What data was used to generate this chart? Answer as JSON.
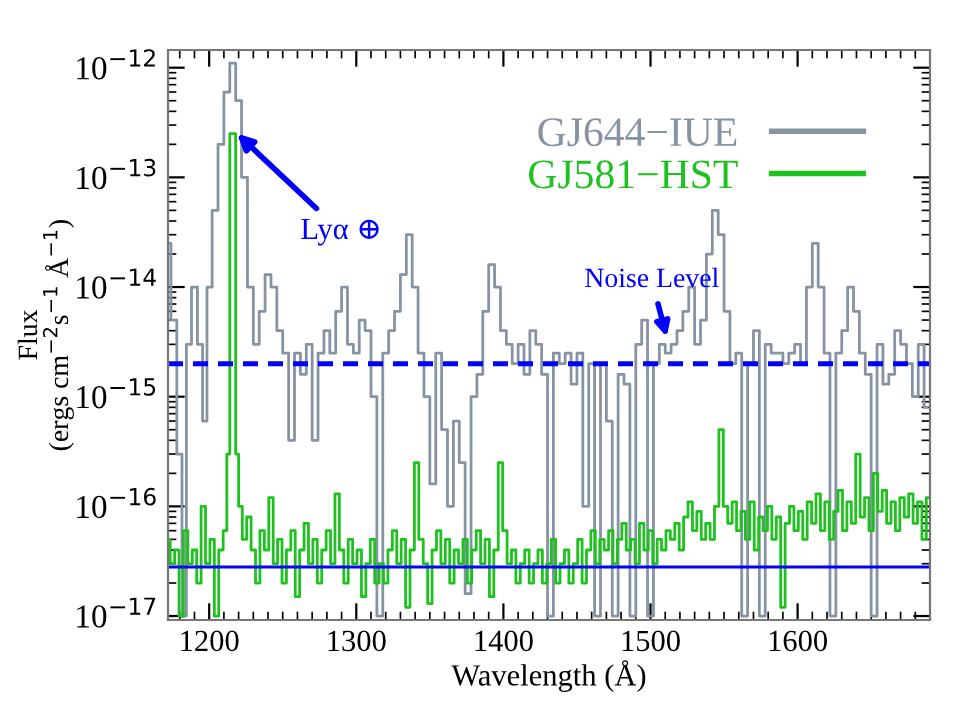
{
  "chart_data": {
    "type": "step",
    "xlabel": "Wavelength (Å)",
    "ylabel": "Flux\n(ergs cm$^{−2}$s$^{−1}$ Å$^{−1}$)",
    "log": "y",
    "xlim": [
      1172,
      1690
    ],
    "ylim": [
      9.2e-18,
      1.45e-12
    ],
    "xticks": [
      1200,
      1300,
      1400,
      1500,
      1600
    ],
    "yticks": [
      {
        "value": 1e-17,
        "label": "10$^{−17}$"
      },
      {
        "value": 1e-16,
        "label": "10$^{−16}$"
      },
      {
        "value": 1e-15,
        "label": "10$^{−15}$"
      },
      {
        "value": 1e-14,
        "label": "10$^{−14}$"
      },
      {
        "value": 1e-13,
        "label": "10$^{−13}$"
      },
      {
        "value": 1e-12,
        "label": "10$^{−12}$"
      }
    ],
    "legend": "top right",
    "grid": false,
    "series": [
      {
        "name": "GJ644−IUE",
        "color": "#8593a3",
        "x": [
          1172,
          1176,
          1180,
          1183,
          1186,
          1190,
          1194,
          1197,
          1200,
          1204,
          1208,
          1212,
          1216,
          1220,
          1224,
          1228,
          1232,
          1236,
          1240,
          1244,
          1248,
          1252,
          1256,
          1260,
          1264,
          1268,
          1272,
          1276,
          1280,
          1284,
          1288,
          1292,
          1296,
          1300,
          1304,
          1308,
          1312,
          1316,
          1320,
          1324,
          1328,
          1332,
          1336,
          1340,
          1344,
          1348,
          1352,
          1356,
          1360,
          1364,
          1368,
          1372,
          1376,
          1380,
          1384,
          1388,
          1392,
          1396,
          1400,
          1404,
          1408,
          1412,
          1416,
          1420,
          1424,
          1428,
          1432,
          1436,
          1440,
          1444,
          1448,
          1452,
          1456,
          1460,
          1464,
          1468,
          1472,
          1476,
          1480,
          1484,
          1488,
          1492,
          1496,
          1500,
          1504,
          1508,
          1512,
          1516,
          1520,
          1524,
          1528,
          1532,
          1536,
          1540,
          1544,
          1548,
          1552,
          1556,
          1560,
          1564,
          1568,
          1572,
          1576,
          1580,
          1584,
          1588,
          1592,
          1596,
          1600,
          1604,
          1608,
          1612,
          1616,
          1620,
          1624,
          1628,
          1632,
          1636,
          1640,
          1644,
          1648,
          1652,
          1656,
          1660,
          1664,
          1668,
          1672,
          1676,
          1680,
          1684,
          1688
        ],
        "values": [
          2.5e-14,
          5e-15,
          3e-16,
          1e-17,
          3e-15,
          1e-14,
          3e-15,
          6e-16,
          1e-14,
          5e-14,
          2e-13,
          6e-13,
          1.1e-12,
          5e-13,
          1e-13,
          1e-14,
          3e-15,
          6e-15,
          1.3e-14,
          1e-14,
          4e-15,
          2.5e-15,
          4e-16,
          2.5e-15,
          1.6e-15,
          3e-15,
          4e-16,
          2.5e-15,
          4e-15,
          2.5e-15,
          6e-15,
          1e-14,
          3e-15,
          2.5e-15,
          5e-15,
          4e-15,
          1e-15,
          1e-17,
          2.5e-15,
          4e-15,
          6e-15,
          1.3e-14,
          3e-14,
          1e-14,
          2.5e-15,
          1e-15,
          1.6e-16,
          2.5e-15,
          5e-16,
          1e-16,
          6e-16,
          2.5e-16,
          1.6e-17,
          1e-15,
          1.6e-15,
          6e-15,
          1.6e-14,
          1e-14,
          4e-15,
          3e-15,
          2e-15,
          3e-15,
          1.6e-15,
          4e-15,
          3e-15,
          1.6e-15,
          1e-17,
          2.5e-15,
          2e-15,
          2.5e-15,
          1.3e-15,
          2.5e-15,
          1e-16,
          2e-15,
          1e-17,
          2e-15,
          6e-16,
          1e-17,
          1.6e-15,
          1.3e-15,
          1e-17,
          3e-15,
          5e-15,
          1e-17,
          2e-15,
          3e-15,
          2.5e-15,
          3e-15,
          4e-15,
          6e-15,
          1e-14,
          3e-15,
          5e-15,
          2e-14,
          5e-14,
          3e-14,
          6e-15,
          2e-15,
          2.5e-15,
          1e-17,
          2e-15,
          4e-15,
          1e-17,
          3e-15,
          2.5e-15,
          2.5e-15,
          2e-15,
          2.5e-15,
          3e-15,
          2e-15,
          1e-14,
          2.5e-14,
          1e-14,
          2.5e-15,
          1e-17,
          2.5e-15,
          4e-15,
          1e-14,
          6e-15,
          2.5e-15,
          1.6e-15,
          1e-17,
          3e-15,
          1.3e-15,
          1.6e-15,
          4e-15,
          3e-15,
          2e-15,
          1e-15,
          3e-15,
          8e-16
        ]
      },
      {
        "name": "GJ581−HST",
        "color": "#1ec21e",
        "x": [
          1172,
          1175,
          1178,
          1181,
          1184,
          1187,
          1190,
          1193,
          1196,
          1199,
          1202,
          1205,
          1208,
          1211,
          1213,
          1215,
          1217,
          1219,
          1221,
          1224,
          1227,
          1230,
          1233,
          1236,
          1239,
          1242,
          1245,
          1248,
          1251,
          1254,
          1257,
          1260,
          1263,
          1266,
          1269,
          1272,
          1275,
          1278,
          1281,
          1284,
          1287,
          1290,
          1293,
          1296,
          1299,
          1302,
          1305,
          1308,
          1311,
          1314,
          1317,
          1320,
          1323,
          1326,
          1329,
          1332,
          1335,
          1338,
          1341,
          1344,
          1347,
          1350,
          1353,
          1356,
          1359,
          1362,
          1365,
          1368,
          1371,
          1374,
          1377,
          1380,
          1383,
          1386,
          1389,
          1392,
          1395,
          1398,
          1401,
          1404,
          1407,
          1410,
          1413,
          1416,
          1419,
          1422,
          1425,
          1428,
          1431,
          1434,
          1437,
          1440,
          1443,
          1446,
          1449,
          1452,
          1455,
          1458,
          1461,
          1464,
          1467,
          1470,
          1473,
          1476,
          1479,
          1482,
          1485,
          1488,
          1491,
          1494,
          1497,
          1500,
          1503,
          1506,
          1509,
          1512,
          1515,
          1518,
          1521,
          1524,
          1527,
          1530,
          1533,
          1536,
          1539,
          1542,
          1545,
          1548,
          1551,
          1554,
          1557,
          1560,
          1563,
          1566,
          1569,
          1572,
          1575,
          1578,
          1581,
          1584,
          1587,
          1590,
          1593,
          1596,
          1599,
          1602,
          1605,
          1608,
          1611,
          1614,
          1617,
          1620,
          1623,
          1626,
          1629,
          1632,
          1635,
          1638,
          1641,
          1644,
          1647,
          1650,
          1653,
          1656,
          1659,
          1662,
          1665,
          1668,
          1671,
          1674,
          1677,
          1680,
          1683,
          1686,
          1689
        ],
        "values": [
          5e-17,
          3e-17,
          4e-17,
          1e-17,
          6e-17,
          3e-17,
          4e-17,
          2e-17,
          1e-16,
          3e-17,
          5e-17,
          1e-17,
          4e-17,
          6e-17,
          3e-16,
          2.5e-13,
          2.5e-13,
          3e-16,
          1e-16,
          5e-17,
          8e-17,
          4e-17,
          2e-17,
          6e-17,
          4e-17,
          1.2e-16,
          3e-17,
          5e-17,
          2e-17,
          4e-17,
          6e-17,
          1.5e-17,
          4e-17,
          7e-17,
          3e-17,
          5e-17,
          2e-17,
          4e-17,
          6e-17,
          3e-17,
          1.3e-16,
          4e-17,
          2e-17,
          5e-17,
          3e-17,
          4e-17,
          1.5e-17,
          3e-17,
          5e-17,
          2e-17,
          3e-17,
          2e-17,
          4e-17,
          6e-17,
          3e-17,
          5e-17,
          1.2e-17,
          4e-17,
          2.5e-16,
          5e-17,
          3e-17,
          1.3e-17,
          4e-17,
          6e-17,
          3e-17,
          5e-17,
          2e-17,
          4e-17,
          3e-17,
          5e-17,
          2e-17,
          4e-17,
          6e-17,
          3e-17,
          5e-17,
          1.5e-17,
          4e-17,
          2.5e-16,
          6e-17,
          3e-17,
          4e-17,
          2e-17,
          3e-17,
          4e-17,
          2e-17,
          3e-17,
          4e-17,
          2e-17,
          3e-17,
          5e-17,
          2e-17,
          3e-17,
          4e-17,
          2e-17,
          3e-17,
          5e-17,
          2e-17,
          4e-17,
          6e-17,
          3e-17,
          5e-17,
          4e-17,
          6e-17,
          3e-17,
          5e-17,
          7e-17,
          4e-17,
          5e-17,
          3e-17,
          7e-17,
          4e-17,
          6e-17,
          3e-17,
          5e-17,
          4e-17,
          6e-17,
          5e-17,
          7e-17,
          4e-17,
          8e-17,
          1.1e-16,
          6e-17,
          9e-17,
          5e-17,
          7e-17,
          5e-17,
          1e-16,
          5e-16,
          1e-16,
          7e-17,
          1.1e-16,
          6e-17,
          9e-17,
          5e-17,
          1.1e-16,
          4e-17,
          8e-17,
          6e-17,
          1e-16,
          5e-17,
          8e-17,
          1.2e-17,
          7e-17,
          1e-16,
          6e-17,
          9e-17,
          5e-17,
          1.1e-16,
          7e-17,
          1.3e-16,
          6e-17,
          1.1e-16,
          5e-17,
          9e-17,
          1.4e-16,
          6e-17,
          1.1e-16,
          7e-17,
          3e-16,
          8e-17,
          1.2e-16,
          6e-17,
          2e-16,
          9e-17,
          1.4e-16,
          7e-17,
          1.1e-16,
          6e-17,
          1.2e-16,
          8e-17,
          1.3e-16,
          7e-17,
          1.1e-16,
          5e-17,
          1.2e-16
        ]
      }
    ],
    "ref_lines": [
      {
        "axis": "y",
        "value": 2e-15,
        "color": "#0000ff",
        "line_style": "dashed"
      },
      {
        "axis": "y",
        "value": 2.8e-17,
        "color": "#0000ff",
        "line_style": "solid"
      }
    ],
    "annotations": [
      {
        "text": "Lyα ⊕",
        "x": 1219,
        "y": 2.5e-13
      },
      {
        "text": "Noise Level",
        "x": 1511,
        "y": 3.5e-15
      }
    ]
  }
}
